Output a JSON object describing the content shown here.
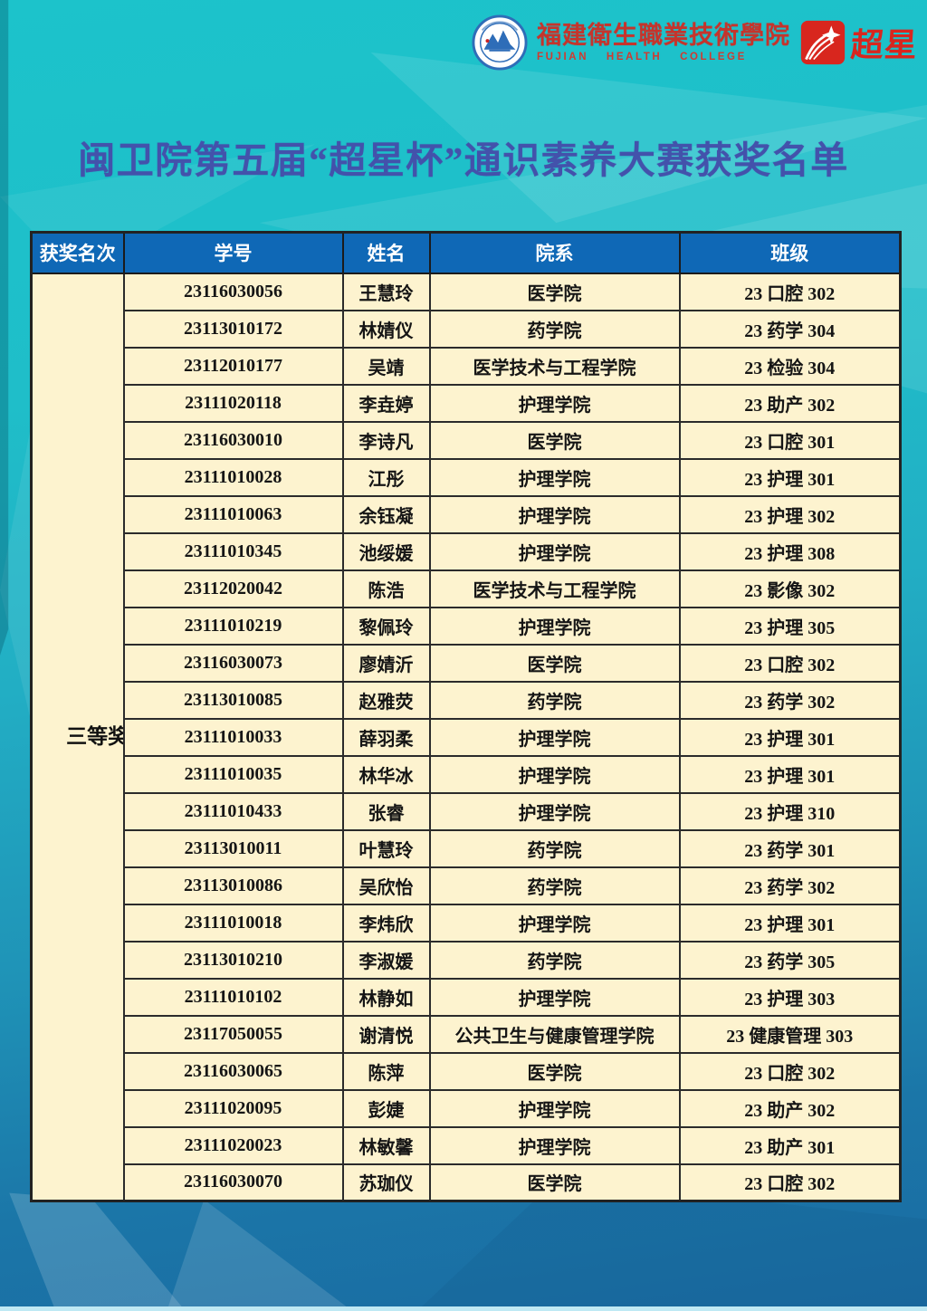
{
  "title": "闽卫院第五届“超星杯”通识素养大赛获奖名单",
  "header": {
    "college_name_zh": "福建衛生職業技術學院",
    "college_name_en": "FUJIAN HEALTH COLLEGE",
    "partner_name_zh": "超星"
  },
  "table": {
    "columns": [
      "获奖名次",
      "学号",
      "姓名",
      "院系",
      "班级"
    ],
    "award_rank": "三等奖",
    "rows": [
      {
        "student_id": "23116030056",
        "name": "王慧玲",
        "department": "医学院",
        "class": "23 口腔 302"
      },
      {
        "student_id": "23113010172",
        "name": "林婧仪",
        "department": "药学院",
        "class": "23 药学 304"
      },
      {
        "student_id": "23112010177",
        "name": "吴靖",
        "department": "医学技术与工程学院",
        "class": "23 检验 304"
      },
      {
        "student_id": "23111020118",
        "name": "李垚婷",
        "department": "护理学院",
        "class": "23 助产 302"
      },
      {
        "student_id": "23116030010",
        "name": "李诗凡",
        "department": "医学院",
        "class": "23 口腔 301"
      },
      {
        "student_id": "23111010028",
        "name": "江彤",
        "department": "护理学院",
        "class": "23 护理 301"
      },
      {
        "student_id": "23111010063",
        "name": "余钰凝",
        "department": "护理学院",
        "class": "23 护理 302"
      },
      {
        "student_id": "23111010345",
        "name": "池绥媛",
        "department": "护理学院",
        "class": "23 护理 308"
      },
      {
        "student_id": "23112020042",
        "name": "陈浩",
        "department": "医学技术与工程学院",
        "class": "23 影像 302"
      },
      {
        "student_id": "23111010219",
        "name": "黎佩玲",
        "department": "护理学院",
        "class": "23 护理 305"
      },
      {
        "student_id": "23116030073",
        "name": "廖婧沂",
        "department": "医学院",
        "class": "23 口腔 302"
      },
      {
        "student_id": "23113010085",
        "name": "赵雅荧",
        "department": "药学院",
        "class": "23 药学 302"
      },
      {
        "student_id": "23111010033",
        "name": "薛羽柔",
        "department": "护理学院",
        "class": "23 护理 301"
      },
      {
        "student_id": "23111010035",
        "name": "林华冰",
        "department": "护理学院",
        "class": "23 护理 301"
      },
      {
        "student_id": "23111010433",
        "name": "张睿",
        "department": "护理学院",
        "class": "23 护理 310"
      },
      {
        "student_id": "23113010011",
        "name": "叶慧玲",
        "department": "药学院",
        "class": "23 药学 301"
      },
      {
        "student_id": "23113010086",
        "name": "吴欣怡",
        "department": "药学院",
        "class": "23 药学 302"
      },
      {
        "student_id": "23111010018",
        "name": "李炜欣",
        "department": "护理学院",
        "class": "23 护理 301"
      },
      {
        "student_id": "23113010210",
        "name": "李淑媛",
        "department": "药学院",
        "class": "23 药学 305"
      },
      {
        "student_id": "23111010102",
        "name": "林静如",
        "department": "护理学院",
        "class": "23 护理 303"
      },
      {
        "student_id": "23117050055",
        "name": "谢清悦",
        "department": "公共卫生与健康管理学院",
        "class": "23 健康管理 303"
      },
      {
        "student_id": "23116030065",
        "name": "陈萍",
        "department": "医学院",
        "class": "23 口腔 302"
      },
      {
        "student_id": "23111020095",
        "name": "彭婕",
        "department": "护理学院",
        "class": "23 助产 302"
      },
      {
        "student_id": "23111020023",
        "name": "林敏馨",
        "department": "护理学院",
        "class": "23 助产 301"
      },
      {
        "student_id": "23116030070",
        "name": "苏珈仪",
        "department": "医学院",
        "class": "23 口腔 302"
      }
    ]
  },
  "colors": {
    "background_top": "#1cc3cb",
    "background_bottom": "#1a6ba2",
    "table_header_blue": "#0f68b6",
    "row_cream": "#fdf3cf",
    "title_blue": "#4352ab",
    "logo_red": "#c5342c",
    "border_dark": "#2b2b2b"
  }
}
